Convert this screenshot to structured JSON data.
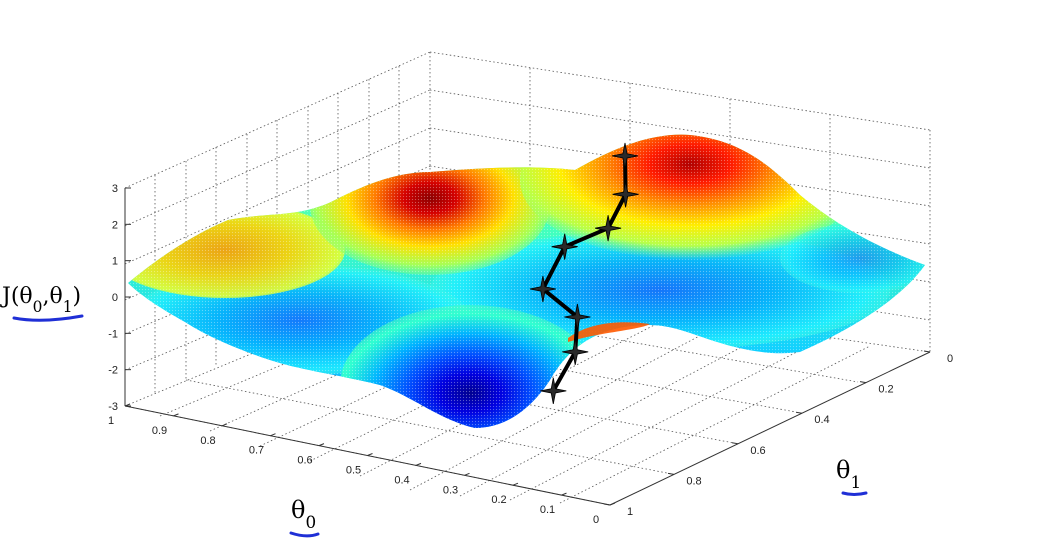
{
  "chart_data": {
    "type": "surface",
    "zlabel": "J(θ0,θ1)",
    "xlabel": "θ0",
    "ylabel": "θ1",
    "theta0_ticks": [
      "1",
      "0.9",
      "0.8",
      "0.7",
      "0.6",
      "0.5",
      "0.4",
      "0.3",
      "0.2",
      "0.1",
      "0"
    ],
    "theta1_ticks": [
      "0",
      "0.2",
      "0.4",
      "0.6",
      "0.8",
      "1"
    ],
    "z_ticks": [
      "3",
      "2",
      "1",
      "0",
      "-1",
      "-2",
      "-3"
    ],
    "zlim": [
      -3,
      3
    ],
    "grid": true,
    "colormap": "jet",
    "descent_path": [
      {
        "theta0": 0.51,
        "theta1": 0.16,
        "J": 2.0
      },
      {
        "theta0": 0.49,
        "theta1": 0.19,
        "J": 1.1
      },
      {
        "theta0": 0.5,
        "theta1": 0.23,
        "J": 0.3
      },
      {
        "theta0": 0.6,
        "theta1": 0.21,
        "J": -0.5
      },
      {
        "theta0": 0.6,
        "theta1": 0.28,
        "J": -1.4
      },
      {
        "theta0": 0.48,
        "theta1": 0.36,
        "J": -1.6
      },
      {
        "theta0": 0.44,
        "theta1": 0.43,
        "J": -2.2
      },
      {
        "theta0": 0.44,
        "theta1": 0.5,
        "J": -3.0
      }
    ],
    "annotation_color": "#1f2fd6"
  }
}
